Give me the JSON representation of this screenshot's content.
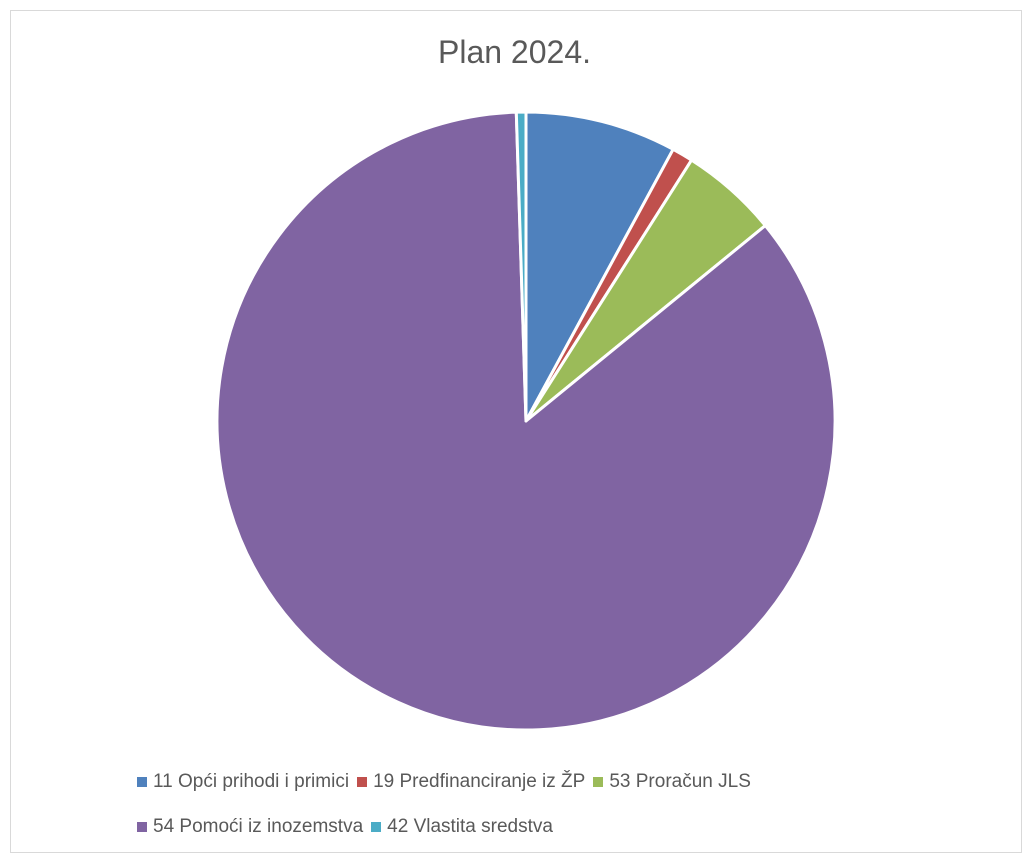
{
  "chart_data": {
    "type": "pie",
    "title": "Plan 2024.",
    "legend_position": "bottom",
    "categories": [
      "11 Opći prihodi i primici",
      "19 Predfinanciranje iz ŽP",
      "53 Proračun JLS",
      "54 Pomoći iz inozemstva",
      "42 Vlastita sredstva"
    ],
    "values": [
      7.9,
      1.1,
      5.1,
      85.4,
      0.5
    ],
    "colors": [
      "#4f81bd",
      "#c0504d",
      "#9bbb59",
      "#8064a2",
      "#4bacc6"
    ],
    "start_angle_deg": 0,
    "direction": "clockwise"
  }
}
